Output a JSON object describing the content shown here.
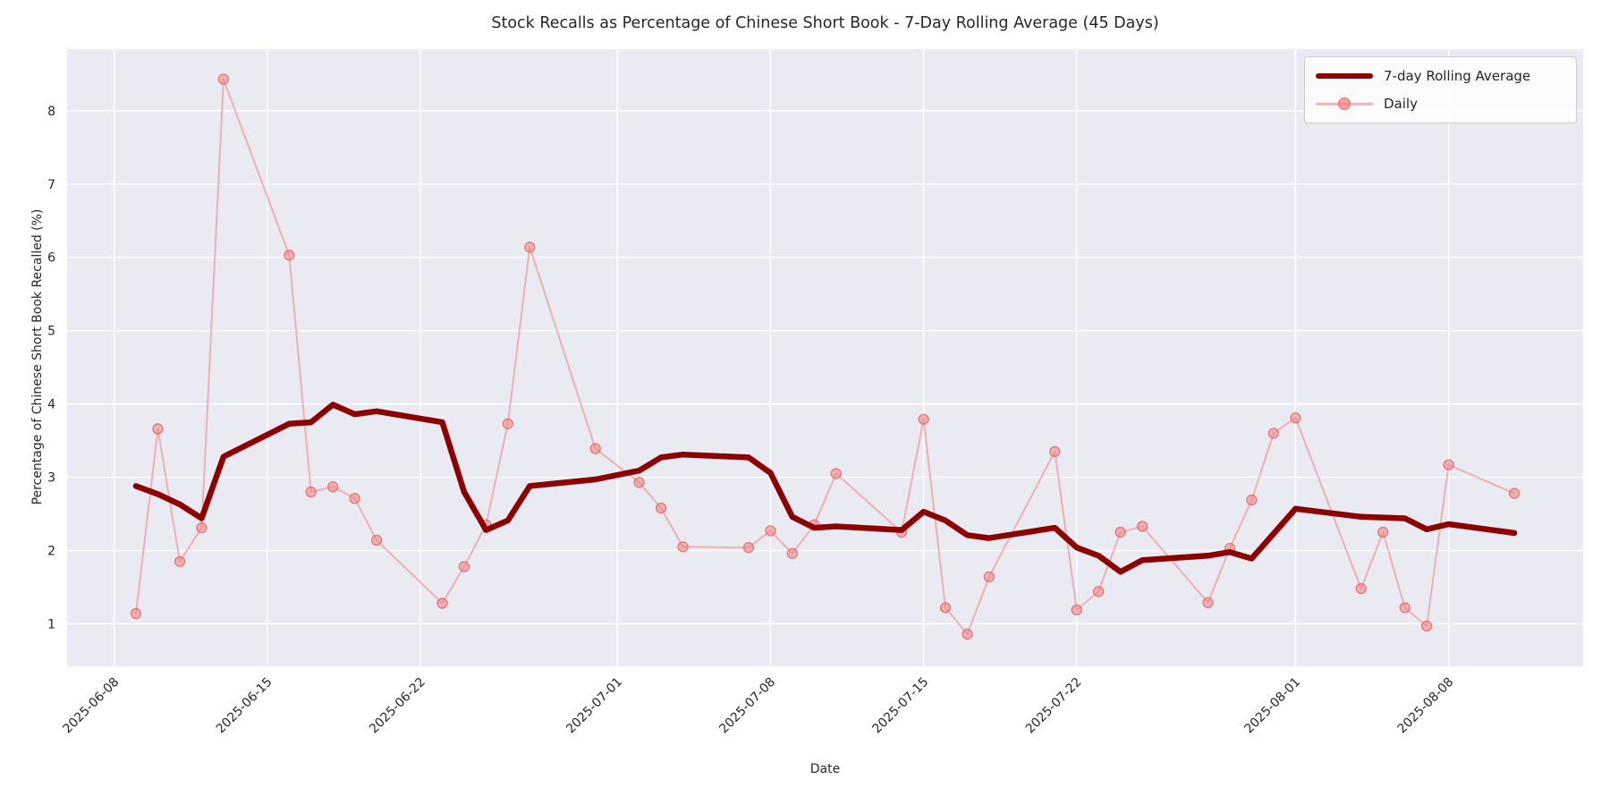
{
  "figure": {
    "title": "Stock Recalls as Percentage of Chinese Short Book - 7-Day Rolling Average (45 Days)",
    "xlabel": "Date",
    "ylabel": "Percentage of Chinese Short Book Recalled (%)"
  },
  "legend": {
    "items": [
      {
        "label": "7-day Rolling Average",
        "color": "#8b0000",
        "style": "thick-line"
      },
      {
        "label": "Daily",
        "color": "#f08080",
        "style": "line-with-marker"
      }
    ]
  },
  "chart_data": {
    "type": "line",
    "title": "Stock Recalls as Percentage of Chinese Short Book - 7-Day Rolling Average (45 Days)",
    "xlabel": "Date",
    "ylabel": "Percentage of Chinese Short Book Recalled (%)",
    "x": [
      "2025-06-09",
      "2025-06-10",
      "2025-06-11",
      "2025-06-12",
      "2025-06-13",
      "2025-06-16",
      "2025-06-17",
      "2025-06-18",
      "2025-06-19",
      "2025-06-20",
      "2025-06-23",
      "2025-06-24",
      "2025-06-25",
      "2025-06-26",
      "2025-06-27",
      "2025-06-30",
      "2025-07-02",
      "2025-07-03",
      "2025-07-04",
      "2025-07-07",
      "2025-07-08",
      "2025-07-09",
      "2025-07-10",
      "2025-07-11",
      "2025-07-14",
      "2025-07-15",
      "2025-07-16",
      "2025-07-17",
      "2025-07-18",
      "2025-07-21",
      "2025-07-22",
      "2025-07-23",
      "2025-07-24",
      "2025-07-25",
      "2025-07-28",
      "2025-07-29",
      "2025-07-30",
      "2025-07-31",
      "2025-08-01",
      "2025-08-04",
      "2025-08-05",
      "2025-08-06",
      "2025-08-07",
      "2025-08-08",
      "2025-08-11"
    ],
    "series": [
      {
        "name": "7-day Rolling Average",
        "color": "#8b0000",
        "line_width": 6.5,
        "values": [
          2.88,
          2.77,
          2.63,
          2.44,
          3.28,
          3.73,
          3.75,
          3.99,
          3.86,
          3.9,
          3.75,
          2.8,
          2.28,
          2.41,
          2.88,
          2.97,
          3.09,
          3.27,
          3.31,
          3.27,
          3.06,
          2.46,
          2.31,
          2.33,
          2.28,
          2.53,
          2.41,
          2.21,
          2.17,
          2.31,
          2.04,
          1.93,
          1.71,
          1.87,
          1.93,
          1.98,
          1.89,
          2.23,
          2.57,
          2.46,
          2.45,
          2.44,
          2.29,
          2.36,
          2.24
        ]
      },
      {
        "name": "Daily",
        "color": "#f08080",
        "line_width": 2,
        "marker": "o",
        "values": [
          1.14,
          3.66,
          1.85,
          2.31,
          8.43,
          6.03,
          2.8,
          2.87,
          2.71,
          2.14,
          1.28,
          1.78,
          2.35,
          3.73,
          6.14,
          3.39,
          2.93,
          2.58,
          2.05,
          2.04,
          2.27,
          1.96,
          2.35,
          3.05,
          2.25,
          3.79,
          1.22,
          0.86,
          1.64,
          3.35,
          1.19,
          1.44,
          2.25,
          2.33,
          1.29,
          2.03,
          2.69,
          3.6,
          3.81,
          1.48,
          2.25,
          1.22,
          0.97,
          3.17,
          2.78
        ]
      }
    ],
    "xticks": [
      "2025-06-08",
      "2025-06-15",
      "2025-06-22",
      "2025-07-01",
      "2025-07-08",
      "2025-07-15",
      "2025-07-22",
      "2025-08-01",
      "2025-08-08"
    ],
    "yticks": [
      1,
      2,
      3,
      4,
      5,
      6,
      7,
      8
    ],
    "ylim": [
      0.42,
      8.84
    ],
    "xlim_days_from_first": [
      -3.15,
      66.15
    ],
    "grid": true,
    "legend_position": "upper right",
    "panel_color": "#eaeaf2",
    "grid_color": "#ffffff",
    "tick_label_color": "#262626"
  }
}
